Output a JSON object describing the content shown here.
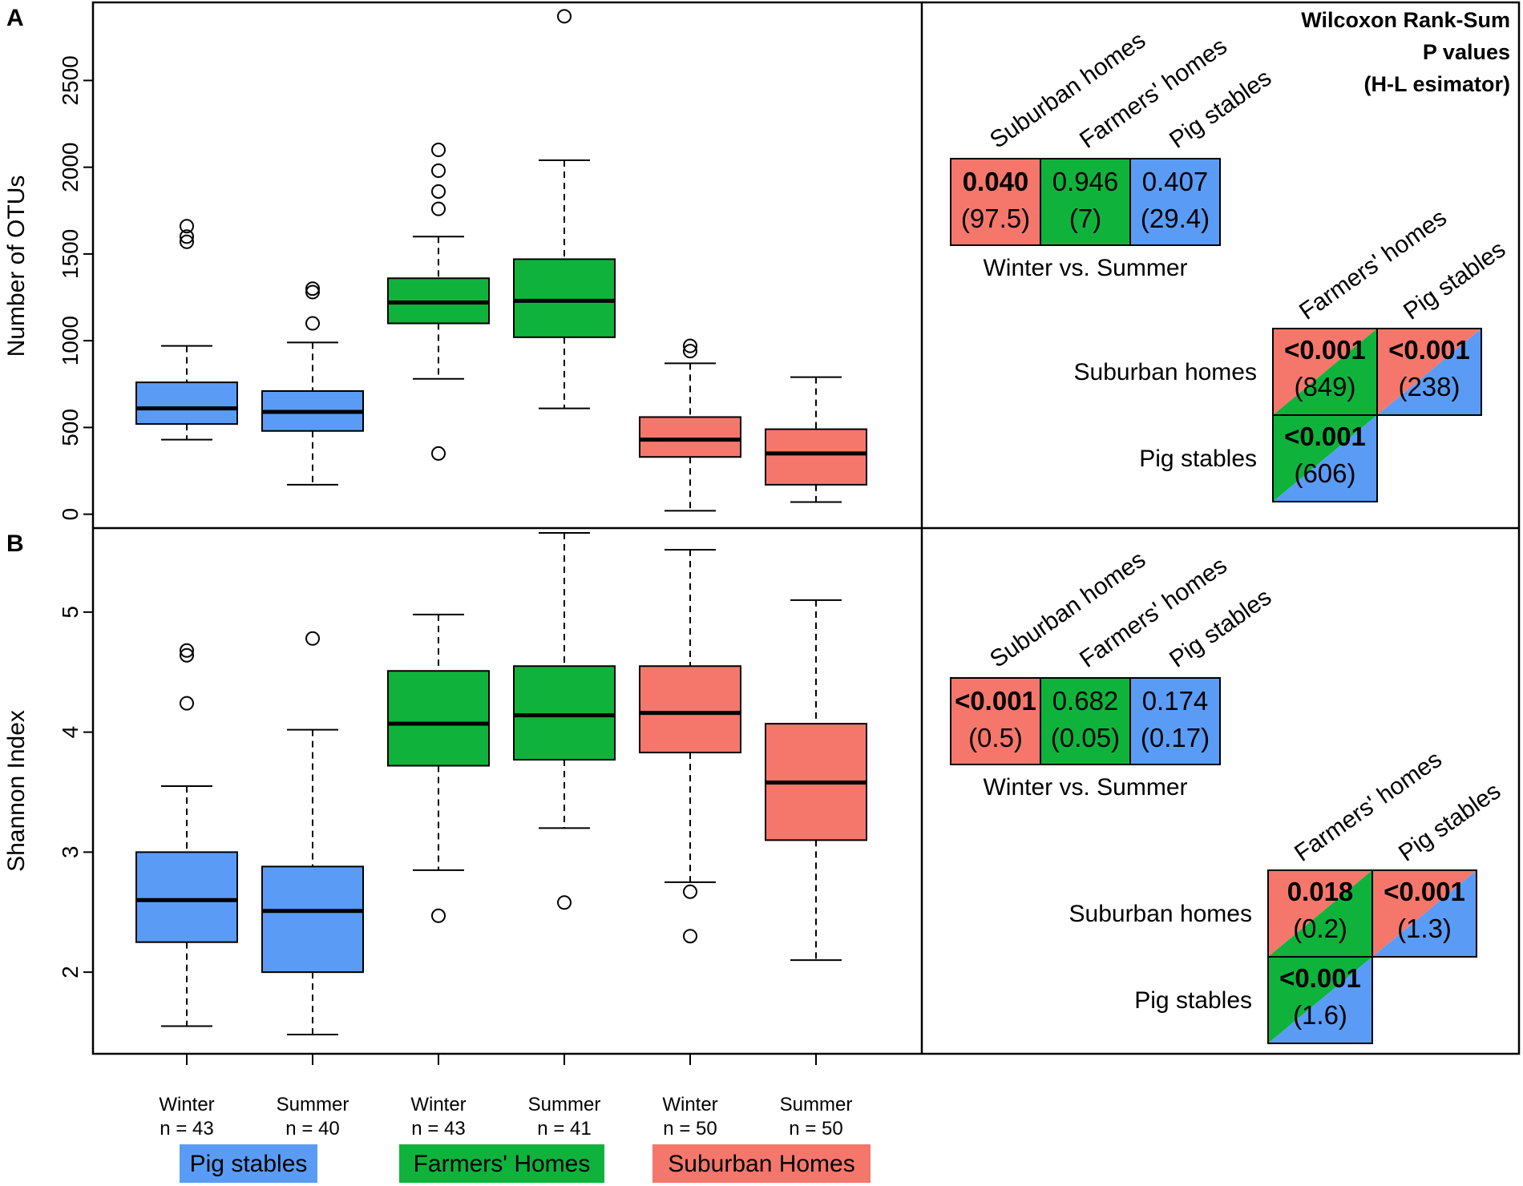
{
  "colors": {
    "pig": "#5a9cf5",
    "farm": "#0fb33c",
    "sub": "#f5776b",
    "frame": "#000000"
  },
  "panels": {
    "a": "A",
    "b": "B"
  },
  "groups": [
    {
      "season": "Winter",
      "n": "n = 43"
    },
    {
      "season": "Summer",
      "n": "n = 40"
    },
    {
      "season": "Winter",
      "n": "n = 43"
    },
    {
      "season": "Summer",
      "n": "n = 41"
    },
    {
      "season": "Winter",
      "n": "n = 50"
    },
    {
      "season": "Summer",
      "n": "n = 50"
    }
  ],
  "legend": [
    "Pig stables",
    "Farmers' Homes",
    "Suburban Homes"
  ],
  "chart_data": [
    {
      "type": "box",
      "panel": "A",
      "ylabel": "Number of OTUs",
      "ylim": [
        -80,
        2950
      ],
      "yticks": [
        0,
        500,
        1000,
        1500,
        2000,
        2500
      ],
      "boxes": [
        {
          "group": "Pig stables",
          "season": "Winter",
          "whisker_low": 430,
          "q1": 520,
          "median": 610,
          "q3": 760,
          "whisker_high": 970,
          "outliers": [
            1570,
            1600,
            1660
          ]
        },
        {
          "group": "Pig stables",
          "season": "Summer",
          "whisker_low": 170,
          "q1": 480,
          "median": 590,
          "q3": 710,
          "whisker_high": 990,
          "outliers": [
            1100,
            1280,
            1300
          ]
        },
        {
          "group": "Farmers' Homes",
          "season": "Winter",
          "whisker_low": 780,
          "q1": 1100,
          "median": 1220,
          "q3": 1360,
          "whisker_high": 1600,
          "outliers": [
            350,
            1760,
            1860,
            1980,
            2100
          ]
        },
        {
          "group": "Farmers' Homes",
          "season": "Summer",
          "whisker_low": 610,
          "q1": 1020,
          "median": 1230,
          "q3": 1470,
          "whisker_high": 2040,
          "outliers": [
            2870
          ]
        },
        {
          "group": "Suburban Homes",
          "season": "Winter",
          "whisker_low": 20,
          "q1": 330,
          "median": 430,
          "q3": 560,
          "whisker_high": 870,
          "outliers": [
            940,
            970
          ]
        },
        {
          "group": "Suburban Homes",
          "season": "Summer",
          "whisker_low": 70,
          "q1": 170,
          "median": 350,
          "q3": 490,
          "whisker_high": 790,
          "outliers": []
        }
      ]
    },
    {
      "type": "box",
      "panel": "B",
      "ylabel": "Shannon Index",
      "ylim": [
        1.32,
        5.7
      ],
      "yticks": [
        2,
        3,
        4,
        5
      ],
      "boxes": [
        {
          "group": "Pig stables",
          "season": "Winter",
          "whisker_low": 1.55,
          "q1": 2.25,
          "median": 2.6,
          "q3": 3.0,
          "whisker_high": 3.55,
          "outliers": [
            4.24,
            4.64,
            4.68
          ]
        },
        {
          "group": "Pig stables",
          "season": "Summer",
          "whisker_low": 1.48,
          "q1": 2.0,
          "median": 2.51,
          "q3": 2.88,
          "whisker_high": 4.02,
          "outliers": [
            4.78
          ]
        },
        {
          "group": "Farmers' Homes",
          "season": "Winter",
          "whisker_low": 2.85,
          "q1": 3.72,
          "median": 4.07,
          "q3": 4.51,
          "whisker_high": 4.98,
          "outliers": [
            2.47
          ]
        },
        {
          "group": "Farmers' Homes",
          "season": "Summer",
          "whisker_low": 3.2,
          "q1": 3.77,
          "median": 4.14,
          "q3": 4.55,
          "whisker_high": 5.66,
          "outliers": [
            2.58
          ]
        },
        {
          "group": "Suburban Homes",
          "season": "Winter",
          "whisker_low": 2.75,
          "q1": 3.83,
          "median": 4.16,
          "q3": 4.55,
          "whisker_high": 5.52,
          "outliers": [
            2.3,
            2.67
          ]
        },
        {
          "group": "Suburban Homes",
          "season": "Summer",
          "whisker_low": 2.1,
          "q1": 3.1,
          "median": 3.58,
          "q3": 4.07,
          "whisker_high": 5.1,
          "outliers": []
        }
      ]
    }
  ],
  "stats": {
    "title": [
      "Wilcoxon Rank-Sum",
      "P values",
      "(H-L esimator)"
    ],
    "a": {
      "ws_headers": [
        "Suburban homes",
        "Farmers' homes",
        "Pig stables"
      ],
      "ws_label": "Winter vs. Summer",
      "ws": [
        {
          "p": "0.040",
          "e": "(97.5)",
          "bold": true
        },
        {
          "p": "0.946",
          "e": "(7)",
          "bold": false
        },
        {
          "p": "0.407",
          "e": "(29.4)",
          "bold": false
        }
      ],
      "pw_headers": [
        "Farmers' homes",
        "Pig stables"
      ],
      "pw_rows": [
        "Suburban homes",
        "Pig stables"
      ],
      "pw": [
        {
          "p": "<0.001",
          "e": "(849)"
        },
        {
          "p": "<0.001",
          "e": "(238)"
        },
        {
          "p": "<0.001",
          "e": "(606)"
        }
      ]
    },
    "b": {
      "ws_headers": [
        "Suburban homes",
        "Farmers' homes",
        "Pig stables"
      ],
      "ws_label": "Winter vs. Summer",
      "ws": [
        {
          "p": "<0.001",
          "e": "(0.5)",
          "bold": true
        },
        {
          "p": "0.682",
          "e": "(0.05)",
          "bold": false
        },
        {
          "p": "0.174",
          "e": "(0.17)",
          "bold": false
        }
      ],
      "pw_headers": [
        "Farmers' homes",
        "Pig stables"
      ],
      "pw_rows": [
        "Suburban homes",
        "Pig stables"
      ],
      "pw": [
        {
          "p": "0.018",
          "e": "(0.2)"
        },
        {
          "p": "<0.001",
          "e": "(1.3)"
        },
        {
          "p": "<0.001",
          "e": "(1.6)"
        }
      ]
    }
  }
}
